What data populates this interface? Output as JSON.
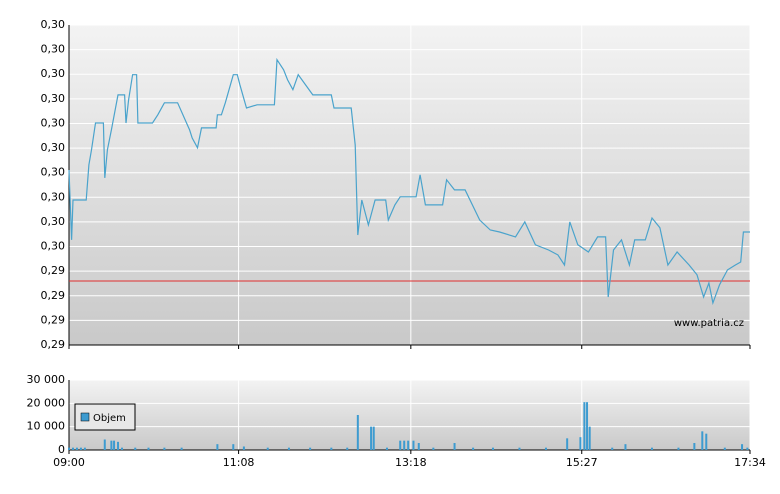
{
  "chart_data": [
    {
      "type": "line",
      "series": [
        {
          "color": "#4aa3cc",
          "x": [
            540,
            542,
            543,
            553,
            555,
            557,
            560,
            566,
            567,
            569,
            572,
            577,
            582,
            583,
            585,
            588,
            591,
            592,
            603,
            607,
            612,
            622,
            631,
            633,
            637,
            640,
            651,
            652,
            655,
            658,
            664,
            667,
            669,
            674,
            682,
            695,
            697,
            702,
            705,
            709,
            713,
            724,
            738,
            740,
            753,
            756,
            758,
            761,
            766,
            771,
            779,
            781,
            786,
            790,
            802,
            805,
            809,
            822,
            825,
            831,
            839,
            850,
            858,
            865,
            877,
            884,
            892,
            902,
            909,
            914,
            918,
            924,
            932,
            939,
            945,
            947,
            951,
            957,
            963,
            967,
            975,
            980,
            986,
            992,
            999,
            1008,
            1014,
            1019,
            1023,
            1026,
            1031,
            1037,
            1043,
            1047,
            1049,
            1054
          ],
          "values": [
            0.29811,
            0.29527,
            0.29689,
            0.29689,
            0.29832,
            0.29893,
            0.30002,
            0.30002,
            0.29779,
            0.29893,
            0.29974,
            0.30116,
            0.30116,
            0.30002,
            0.30096,
            0.30198,
            0.30198,
            0.30002,
            0.30002,
            0.30035,
            0.30084,
            0.30084,
            0.29974,
            0.29941,
            0.29901,
            0.29982,
            0.29982,
            0.30035,
            0.30035,
            0.30084,
            0.30198,
            0.30198,
            0.30157,
            0.30063,
            0.30076,
            0.30076,
            0.30259,
            0.30218,
            0.30177,
            0.30137,
            0.30198,
            0.30116,
            0.30116,
            0.30063,
            0.30063,
            0.29913,
            0.29547,
            0.29689,
            0.29588,
            0.29689,
            0.29689,
            0.29608,
            0.29669,
            0.29702,
            0.29702,
            0.29791,
            0.29669,
            0.29669,
            0.29771,
            0.2973,
            0.2973,
            0.29608,
            0.29567,
            0.29559,
            0.29539,
            0.296,
            0.29507,
            0.29486,
            0.29466,
            0.29425,
            0.296,
            0.29507,
            0.29478,
            0.29539,
            0.29539,
            0.29295,
            0.29486,
            0.29527,
            0.29425,
            0.29527,
            0.29527,
            0.29616,
            0.29576,
            0.29425,
            0.29478,
            0.29425,
            0.29385,
            0.29295,
            0.29352,
            0.29271,
            0.29344,
            0.29405,
            0.29425,
            0.29437,
            0.29559,
            0.29559
          ]
        }
      ],
      "reference_line": {
        "value": 0.2936,
        "color": "#e03030"
      },
      "xlim": [
        540,
        1054
      ],
      "xticks": [
        540,
        668,
        798,
        927,
        1054
      ],
      "ylim": [
        0.291,
        0.304
      ],
      "yticks": [
        {
          "value": 0.291,
          "label": "0,29"
        },
        {
          "value": 0.292,
          "label": "0,29"
        },
        {
          "value": 0.293,
          "label": "0,29"
        },
        {
          "value": 0.294,
          "label": "0,29"
        },
        {
          "value": 0.295,
          "label": "0,30"
        },
        {
          "value": 0.296,
          "label": "0,30"
        },
        {
          "value": 0.297,
          "label": "0,30"
        },
        {
          "value": 0.298,
          "label": "0,30"
        },
        {
          "value": 0.299,
          "label": "0,30"
        },
        {
          "value": 0.3,
          "label": "0,30"
        },
        {
          "value": 0.301,
          "label": "0,30"
        },
        {
          "value": 0.302,
          "label": "0,30"
        },
        {
          "value": 0.303,
          "label": "0,30"
        },
        {
          "value": 0.304,
          "label": "0,30"
        }
      ],
      "grid": true,
      "annotation": "www.patria.cz"
    },
    {
      "type": "bar",
      "series": [
        {
          "name": "Objem",
          "color": "#3d9bd0",
          "x": [
            540,
            543,
            546,
            549,
            552,
            567,
            572,
            574,
            577,
            580,
            590,
            600,
            612,
            625,
            652,
            664,
            672,
            690,
            706,
            722,
            738,
            750,
            758,
            768,
            770,
            780,
            790,
            793,
            796,
            800,
            804,
            815,
            831,
            845,
            860,
            880,
            900,
            916,
            926,
            929,
            931,
            933,
            950,
            960,
            980,
            1000,
            1012,
            1018,
            1021,
            1035,
            1048,
            1052
          ],
          "values": [
            1000,
            1000,
            1000,
            1000,
            1000,
            4500,
            4000,
            4000,
            3500,
            1000,
            1000,
            1000,
            1000,
            1000,
            2500,
            2500,
            1500,
            1000,
            1000,
            1000,
            1000,
            1000,
            15000,
            10000,
            10000,
            1000,
            4000,
            4000,
            4000,
            4000,
            3000,
            1000,
            3000,
            1000,
            1000,
            1000,
            1000,
            5000,
            5500,
            20500,
            20500,
            10000,
            1000,
            2500,
            1000,
            1000,
            3000,
            8000,
            7000,
            1000,
            2500,
            1000
          ]
        }
      ],
      "xlim": [
        540,
        1054
      ],
      "xticks": [
        {
          "value": 540,
          "label": "09:00"
        },
        {
          "value": 668,
          "label": "11:08"
        },
        {
          "value": 798,
          "label": "13:18"
        },
        {
          "value": 927,
          "label": "15:27"
        },
        {
          "value": 1054,
          "label": "17:34"
        }
      ],
      "ylim": [
        0,
        30000
      ],
      "yticks": [
        0,
        {
          "value": 10000,
          "label": "10 000"
        },
        {
          "value": 20000,
          "label": "20 000"
        },
        {
          "value": 30000,
          "label": "30 000"
        }
      ],
      "grid": true,
      "legend": "upper left"
    }
  ]
}
